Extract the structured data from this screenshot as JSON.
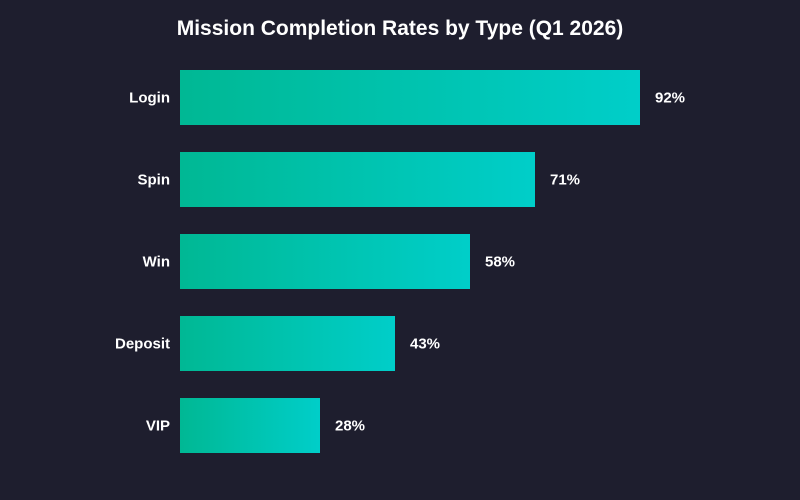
{
  "chart_data": {
    "type": "bar",
    "orientation": "horizontal",
    "title": "Mission Completion Rates by Type (Q1 2026)",
    "categories": [
      "Login",
      "Spin",
      "Win",
      "Deposit",
      "VIP"
    ],
    "values": [
      92,
      71,
      58,
      43,
      28
    ],
    "value_suffix": "%",
    "xlim": [
      0,
      100
    ],
    "grid": false,
    "legend": "none",
    "colors": {
      "background": "#1e1e2e",
      "bar_start": "#00b894",
      "bar_end": "#00cec9",
      "text": "#ffffff"
    }
  }
}
